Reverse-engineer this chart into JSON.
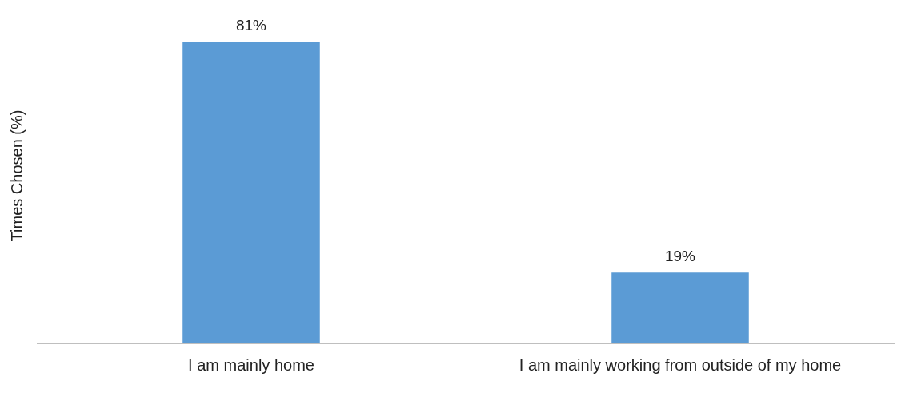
{
  "chart_data": {
    "type": "bar",
    "ylabel": "Times Chosen (%)",
    "categories": [
      "I am mainly home",
      "I am mainly working from outside of my home"
    ],
    "values": [
      81,
      19
    ],
    "color": "#5b9bd5",
    "value_labels": [
      "81%",
      "19%"
    ],
    "grid": false,
    "legend": false,
    "tick_labels": "x"
  }
}
